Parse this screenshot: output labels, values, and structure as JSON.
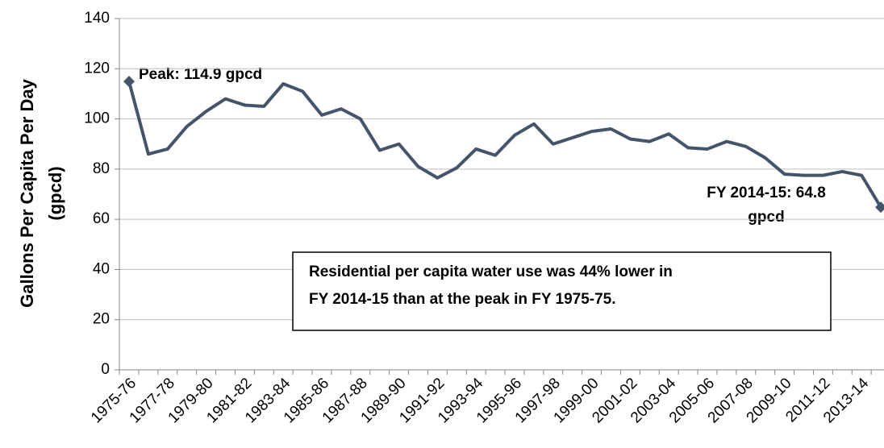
{
  "chart_data": {
    "type": "line",
    "y_label": [
      "Gallons Per Capita Per Day",
      "(gpcd)"
    ],
    "categories": [
      "1975-76",
      null,
      "1977-78",
      null,
      "1979-80",
      null,
      "1981-82",
      null,
      "1983-84",
      null,
      "1985-86",
      null,
      "1987-88",
      null,
      "1989-90",
      null,
      "1991-92",
      null,
      "1993-94",
      null,
      "1995-96",
      null,
      "1997-98",
      null,
      "1999-00",
      null,
      "2001-02",
      null,
      "2003-04",
      null,
      "2005-06",
      null,
      "2007-08",
      null,
      "2009-10",
      null,
      "2011-12",
      null,
      "2013-14",
      null
    ],
    "series": [
      {
        "name": "Residential per capita water use",
        "color": "#44546a",
        "values": [
          114.9,
          86,
          88,
          97,
          103,
          108,
          105.5,
          105,
          114,
          111,
          101.5,
          104,
          100,
          87.5,
          90,
          81,
          76.5,
          80.5,
          88,
          85.5,
          93.5,
          98,
          90,
          92.5,
          95,
          96,
          92,
          91,
          94,
          88.5,
          88,
          91,
          89,
          84.5,
          78,
          77.5,
          77.5,
          79,
          77.5,
          64.8
        ]
      }
    ],
    "ylim": [
      0,
      140
    ],
    "yticks": [
      0,
      20,
      40,
      60,
      80,
      100,
      120,
      140
    ],
    "grid": true,
    "peak_label": "Peak: 114.9 gpcd",
    "end_label": [
      "FY 2014-15: 64.8",
      "gpcd"
    ],
    "note": [
      "Residential per capita water use was 44% lower in",
      "FY 2014-15 than at the peak in FY 1975-75."
    ]
  }
}
